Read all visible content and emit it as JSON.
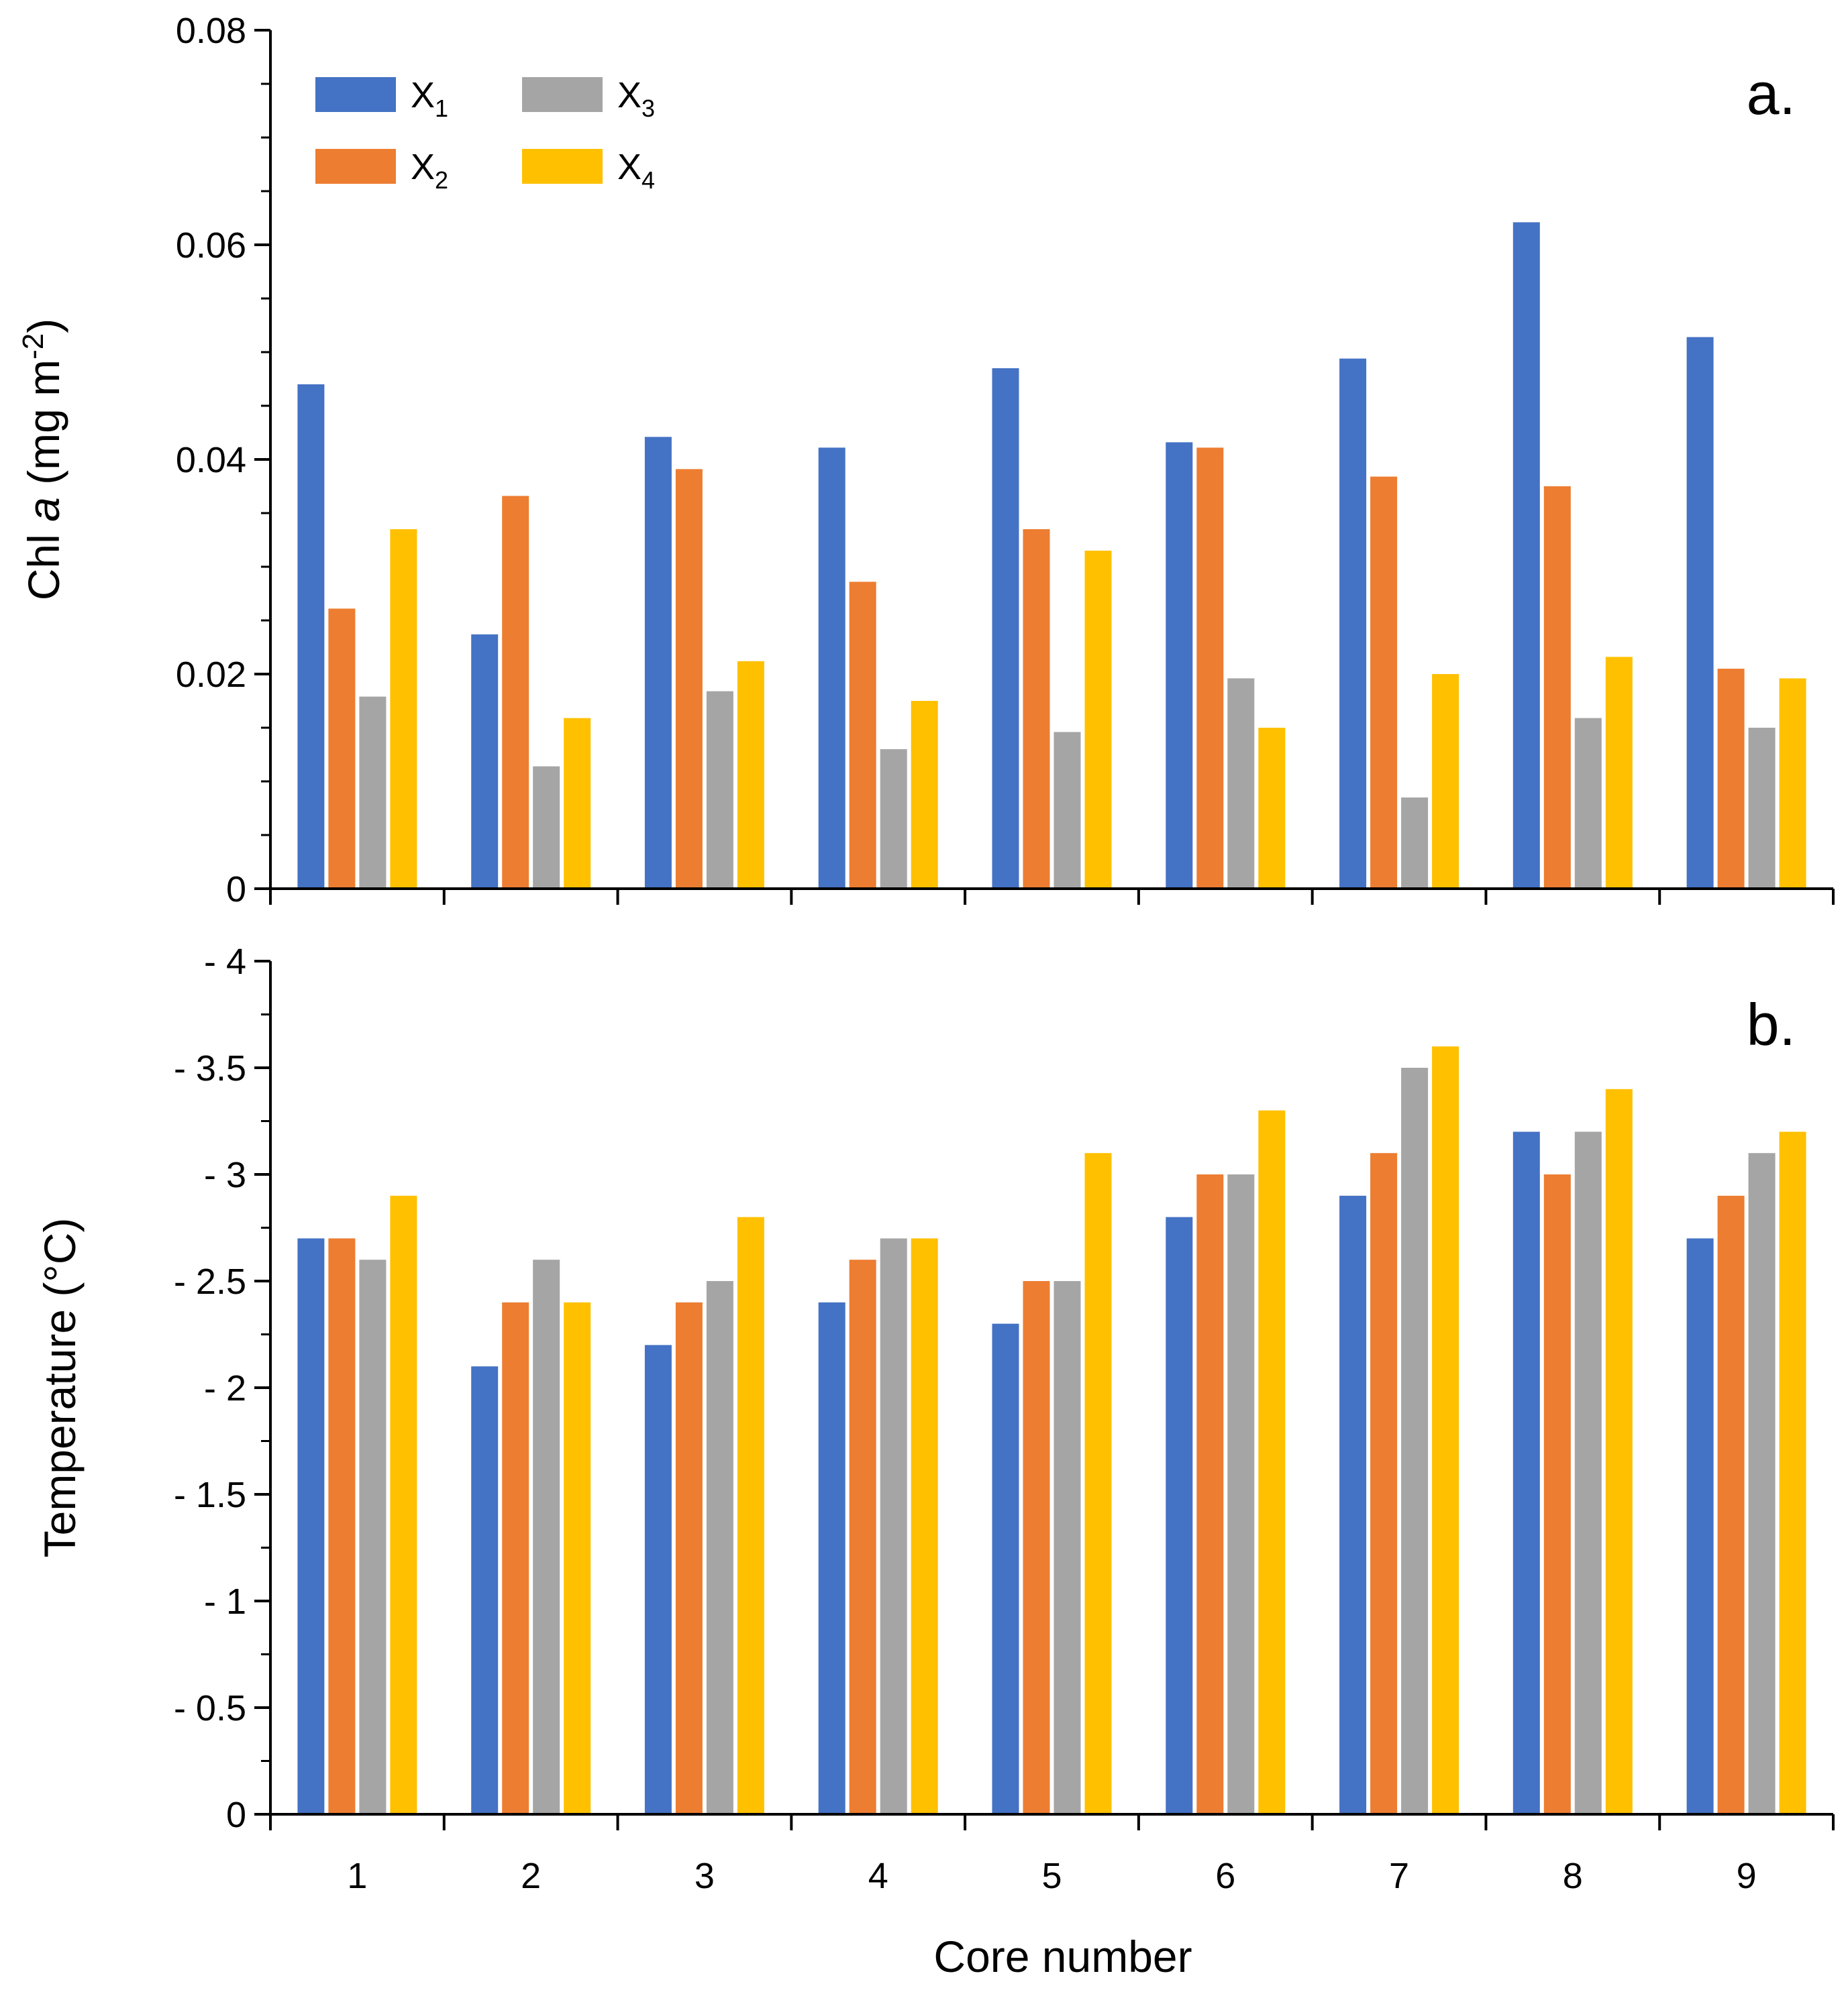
{
  "chart_data": [
    {
      "type": "bar",
      "panel_label": "a.",
      "title": "",
      "ylabel_prefix": "Chl ",
      "ylabel_italic": "a",
      "ylabel_units": " (mg m",
      "ylabel_superscript": "-2",
      "ylabel_suffix": ")",
      "xlabel": "",
      "ylim": [
        0,
        0.08
      ],
      "yticks": [
        0,
        0.02,
        0.04,
        0.06,
        0.08
      ],
      "ytick_labels": [
        "0",
        "0.02",
        "0.04",
        "0.06",
        "0.08"
      ],
      "minor_tick_step": 0.005,
      "categories": [
        "1",
        "2",
        "3",
        "4",
        "5",
        "6",
        "7",
        "8",
        "9"
      ],
      "series": [
        {
          "name": "X1",
          "values": [
            0.047,
            0.0237,
            0.0421,
            0.0411,
            0.0485,
            0.0416,
            0.0494,
            0.0621,
            0.0514
          ]
        },
        {
          "name": "X2",
          "values": [
            0.0261,
            0.0366,
            0.0391,
            0.0286,
            0.0335,
            0.0411,
            0.0384,
            0.0375,
            0.0205
          ]
        },
        {
          "name": "X3",
          "values": [
            0.0179,
            0.0114,
            0.0184,
            0.013,
            0.0146,
            0.0196,
            0.0085,
            0.0159,
            0.015
          ]
        },
        {
          "name": "X4",
          "values": [
            0.0335,
            0.0159,
            0.0212,
            0.0175,
            0.0315,
            0.015,
            0.02,
            0.0216,
            0.0196
          ]
        }
      ],
      "legend": {
        "position": "top-left",
        "entries": [
          {
            "base": "X",
            "sub": "1"
          },
          {
            "base": "X",
            "sub": "2"
          },
          {
            "base": "X",
            "sub": "3"
          },
          {
            "base": "X",
            "sub": "4"
          }
        ]
      },
      "grid": false
    },
    {
      "type": "bar",
      "panel_label": "b.",
      "title": "",
      "ylabel": "Temperature (°C)",
      "xlabel": "Core number",
      "ylim": [
        0,
        -4
      ],
      "yticks": [
        0,
        -0.5,
        -1,
        -1.5,
        -2,
        -2.5,
        -3,
        -3.5,
        -4
      ],
      "ytick_labels": [
        "0",
        "- 0.5",
        "- 1",
        "- 1.5",
        "- 2",
        "- 2.5",
        "- 3",
        "- 3.5",
        "- 4"
      ],
      "minor_tick_step": -0.25,
      "categories": [
        "1",
        "2",
        "3",
        "4",
        "5",
        "6",
        "7",
        "8",
        "9"
      ],
      "series": [
        {
          "name": "X1",
          "values": [
            -2.7,
            -2.1,
            -2.2,
            -2.4,
            -2.3,
            -2.8,
            -2.9,
            -3.2,
            -2.7
          ]
        },
        {
          "name": "X2",
          "values": [
            -2.7,
            -2.4,
            -2.4,
            -2.6,
            -2.5,
            -3.0,
            -3.1,
            -3.0,
            -2.9
          ]
        },
        {
          "name": "X3",
          "values": [
            -2.6,
            -2.6,
            -2.5,
            -2.7,
            -2.5,
            -3.0,
            -3.5,
            -3.2,
            -3.1
          ]
        },
        {
          "name": "X4",
          "values": [
            -2.9,
            -2.4,
            -2.8,
            -2.7,
            -3.1,
            -3.3,
            -3.6,
            -3.4,
            -3.2
          ]
        }
      ],
      "grid": false
    }
  ],
  "colors": {
    "X1": "#4472C4",
    "X2": "#ED7D31",
    "X3": "#A5A5A5",
    "X4": "#FFC000",
    "axis": "#000000"
  }
}
